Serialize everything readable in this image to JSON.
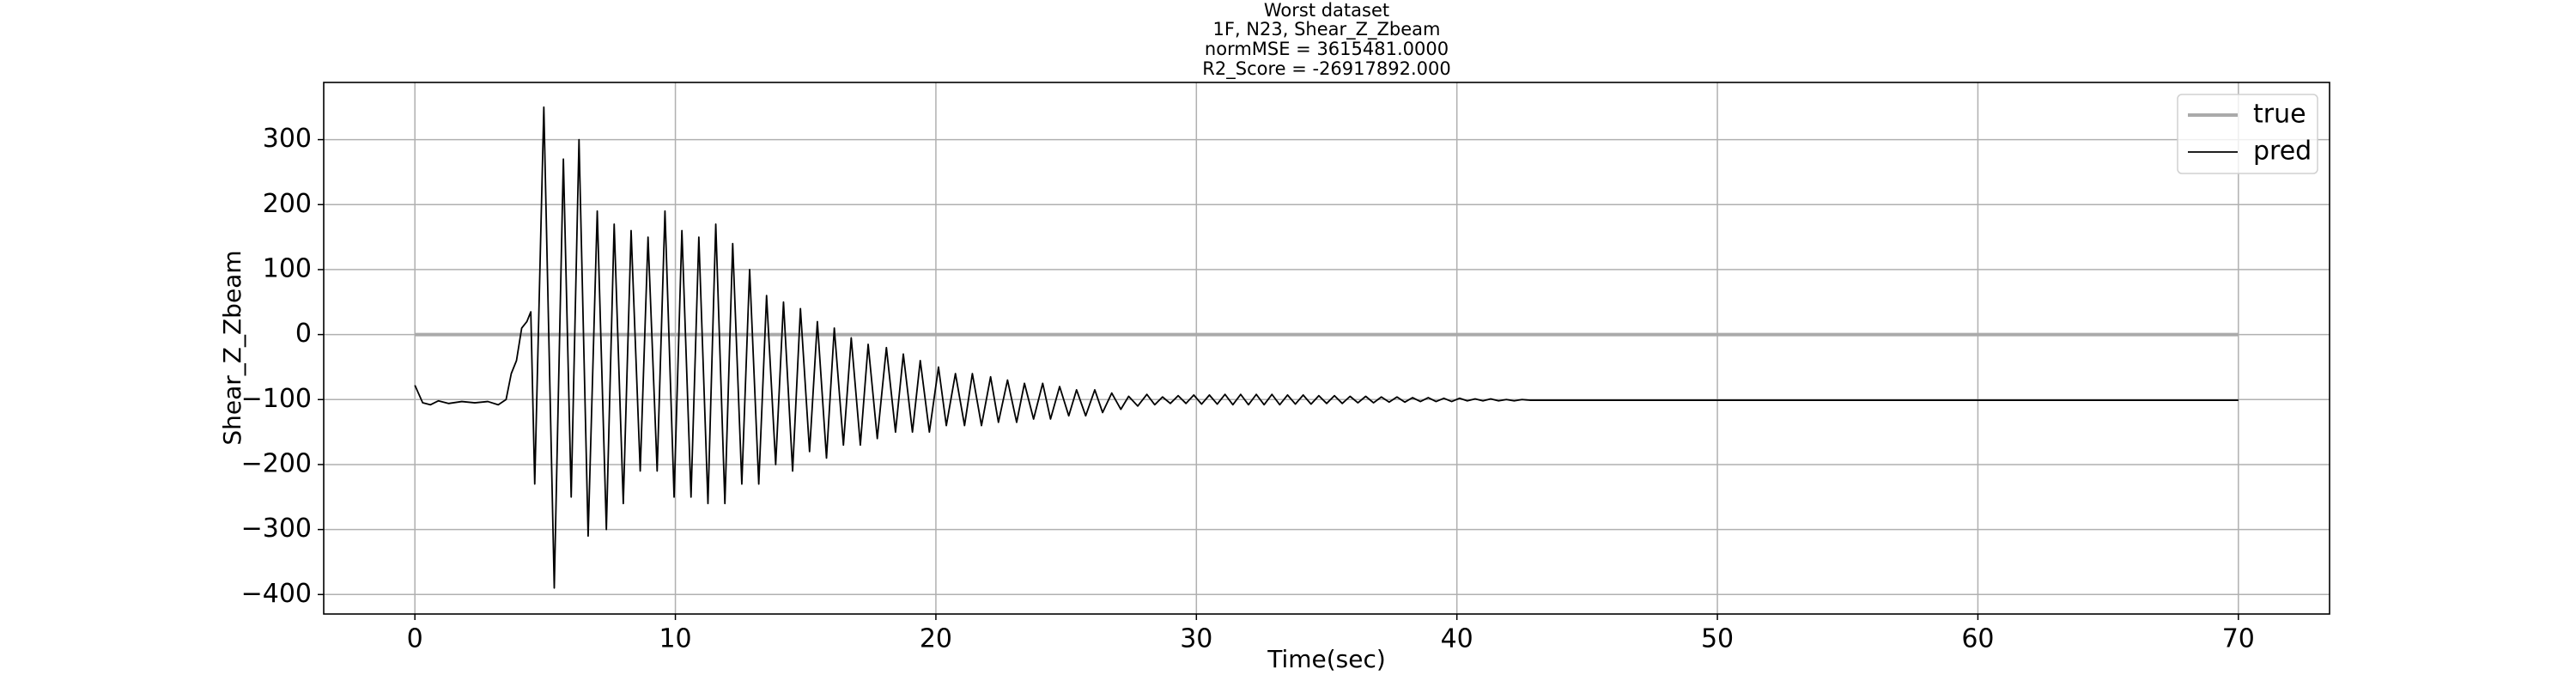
{
  "chart_data": {
    "type": "line",
    "title_lines": [
      "Worst dataset",
      "1F, N23, Shear_Z_Zbeam",
      "normMSE = 3615481.0000",
      "R2_Score = -26917892.000"
    ],
    "x_label": "Time(sec)",
    "y_label": "Shear_Z_Zbeam",
    "xlim": [
      -3.5,
      73.5
    ],
    "ylim": [
      -430,
      388
    ],
    "xticks": [
      0,
      10,
      20,
      30,
      40,
      50,
      60,
      70
    ],
    "yticks": [
      {
        "value": -400,
        "label": "−400"
      },
      {
        "value": -300,
        "label": "−300"
      },
      {
        "value": -200,
        "label": "−200"
      },
      {
        "value": -100,
        "label": "−100"
      },
      0,
      100,
      200,
      300
    ],
    "grid": true,
    "legend": "upper right",
    "series": [
      {
        "name": "true",
        "color": "#aaaaaa",
        "x": [
          0,
          70
        ],
        "values": [
          0,
          0
        ]
      },
      {
        "name": "pred",
        "color": "#000000",
        "x": [
          0,
          0.3,
          0.6,
          0.9,
          1.3,
          1.8,
          2.3,
          2.8,
          3.2,
          3.5,
          3.7,
          3.9,
          4.1,
          4.3,
          4.45,
          4.6,
          4.95,
          5.35,
          5.7,
          6.0,
          6.3,
          6.65,
          7.0,
          7.35,
          7.65,
          8.0,
          8.3,
          8.65,
          8.95,
          9.3,
          9.6,
          9.95,
          10.25,
          10.6,
          10.9,
          11.25,
          11.55,
          11.9,
          12.2,
          12.55,
          12.85,
          13.2,
          13.5,
          13.85,
          14.15,
          14.5,
          14.8,
          15.15,
          15.45,
          15.8,
          16.1,
          16.45,
          16.75,
          17.1,
          17.4,
          17.75,
          18.1,
          18.45,
          18.75,
          19.1,
          19.4,
          19.75,
          20.1,
          20.4,
          20.75,
          21.1,
          21.4,
          21.75,
          22.1,
          22.4,
          22.75,
          23.1,
          23.4,
          23.75,
          24.1,
          24.4,
          24.75,
          25.1,
          25.4,
          25.75,
          26.1,
          26.4,
          26.75,
          27.1,
          27.4,
          27.75,
          28.1,
          28.4,
          28.7,
          29.0,
          29.3,
          29.6,
          29.9,
          30.2,
          30.5,
          30.8,
          31.1,
          31.4,
          31.7,
          32.0,
          32.3,
          32.6,
          32.9,
          33.2,
          33.5,
          33.8,
          34.1,
          34.4,
          34.7,
          35.0,
          35.3,
          35.6,
          35.9,
          36.2,
          36.5,
          36.8,
          37.1,
          37.4,
          37.7,
          38.0,
          38.3,
          38.6,
          38.9,
          39.2,
          39.5,
          39.8,
          40.1,
          40.4,
          40.7,
          41.0,
          41.3,
          41.6,
          41.9,
          42.2,
          42.5,
          42.8,
          45,
          70
        ],
        "values": [
          -78,
          -105,
          -108,
          -102,
          -106,
          -103,
          -105,
          -103,
          -108,
          -100,
          -60,
          -40,
          10,
          20,
          35,
          -230,
          350,
          -390,
          270,
          -250,
          300,
          -310,
          190,
          -300,
          170,
          -260,
          160,
          -210,
          150,
          -210,
          190,
          -250,
          160,
          -250,
          150,
          -260,
          170,
          -260,
          140,
          -230,
          100,
          -230,
          60,
          -200,
          50,
          -210,
          40,
          -180,
          20,
          -190,
          10,
          -170,
          -5,
          -170,
          -15,
          -160,
          -20,
          -150,
          -30,
          -150,
          -40,
          -150,
          -50,
          -140,
          -60,
          -140,
          -60,
          -140,
          -65,
          -135,
          -70,
          -135,
          -75,
          -130,
          -75,
          -130,
          -80,
          -125,
          -85,
          -125,
          -85,
          -120,
          -90,
          -115,
          -95,
          -110,
          -92,
          -108,
          -96,
          -106,
          -94,
          -106,
          -93,
          -107,
          -93,
          -107,
          -92,
          -108,
          -92,
          -108,
          -92,
          -108,
          -92,
          -108,
          -93,
          -107,
          -93,
          -107,
          -94,
          -106,
          -94,
          -106,
          -95,
          -105,
          -95,
          -105,
          -96,
          -104,
          -96,
          -104,
          -97,
          -103,
          -97,
          -103,
          -98,
          -103,
          -98,
          -102,
          -99,
          -102,
          -99,
          -102,
          -100,
          -102,
          -100,
          -101,
          -101,
          -101
        ]
      }
    ]
  }
}
